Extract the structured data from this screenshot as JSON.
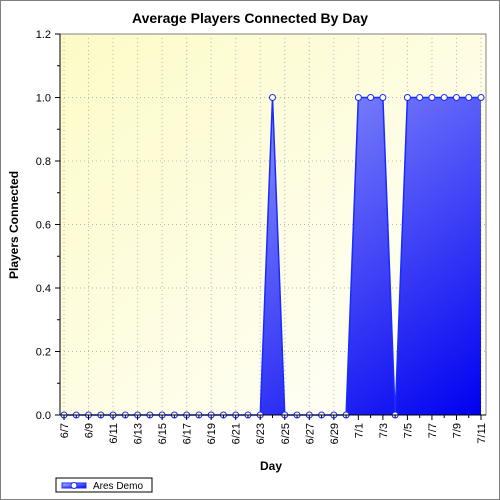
{
  "chart_data": {
    "type": "area",
    "title": "Average Players Connected By Day",
    "xlabel": "Day",
    "ylabel": "Players Connected",
    "ylim": [
      0,
      1.2
    ],
    "yticks": [
      "0.0",
      "0.2",
      "0.4",
      "0.6",
      "0.8",
      "1.0",
      "1.2"
    ],
    "grid": true,
    "legend": "bottom-left",
    "x": [
      "6/7",
      "6/8",
      "6/9",
      "6/10",
      "6/11",
      "6/12",
      "6/13",
      "6/14",
      "6/15",
      "6/16",
      "6/17",
      "6/18",
      "6/19",
      "6/20",
      "6/21",
      "6/22",
      "6/23",
      "6/24",
      "6/25",
      "6/26",
      "6/27",
      "6/28",
      "6/29",
      "6/30",
      "7/1",
      "7/2",
      "7/3",
      "7/4",
      "7/5",
      "7/6",
      "7/7",
      "7/8",
      "7/9",
      "7/10",
      "7/11"
    ],
    "xtick_labels": [
      "6/7",
      "6/9",
      "6/11",
      "6/13",
      "6/15",
      "6/17",
      "6/19",
      "6/21",
      "6/23",
      "6/25",
      "6/27",
      "6/29",
      "7/1",
      "7/3",
      "7/5",
      "7/7",
      "7/9",
      "7/11"
    ],
    "series": [
      {
        "name": "Ares Demo",
        "values": [
          0,
          0,
          0,
          0,
          0,
          0,
          0,
          0,
          0,
          0,
          0,
          0,
          0,
          0,
          0,
          0,
          0,
          1,
          0,
          0,
          0,
          0,
          0,
          0,
          1,
          1,
          1,
          0,
          1,
          1,
          1,
          1,
          1,
          1,
          1
        ]
      }
    ],
    "colors": {
      "fill_light": "#aab4ff",
      "fill_dark": "#0000ee",
      "line": "#1a2bff",
      "marker_fill": "#ffffff",
      "plot_bg_light": "#ffffee",
      "plot_bg_dark": "#fcfcc8"
    }
  }
}
